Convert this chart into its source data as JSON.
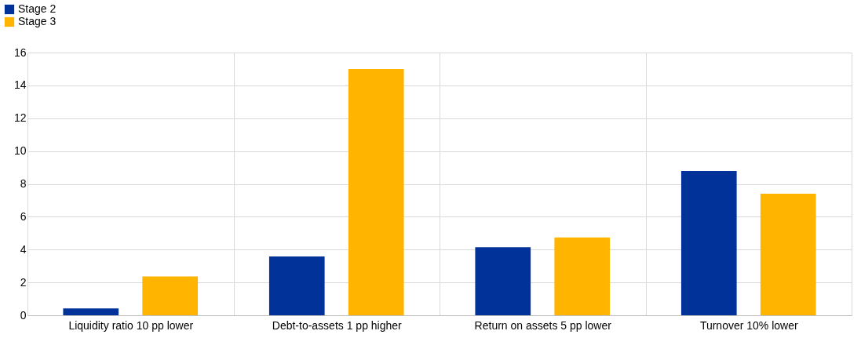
{
  "chart_data": {
    "type": "bar",
    "categories": [
      "Liquidity ratio 10 pp lower",
      "Debt-to-assets 1 pp higher",
      "Return on assets 5 pp lower",
      "Turnover 10% lower"
    ],
    "series": [
      {
        "name": "Stage 2",
        "color": "#003299",
        "values": [
          0.42,
          3.58,
          4.14,
          8.79
        ]
      },
      {
        "name": "Stage 3",
        "color": "#ffb400",
        "values": [
          2.37,
          15.0,
          4.74,
          7.4
        ]
      }
    ],
    "ylim": [
      0,
      16
    ],
    "yticks": [
      0,
      2,
      4,
      6,
      8,
      10,
      12,
      14,
      16
    ],
    "grid": true,
    "legend": "top left"
  }
}
